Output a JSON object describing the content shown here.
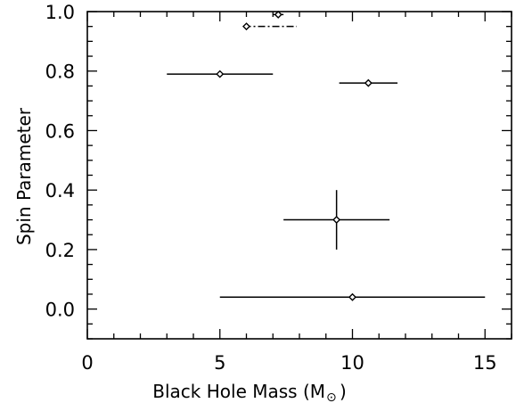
{
  "chart_data": {
    "type": "scatter",
    "title": "",
    "xlabel": "Black Hole Mass (M",
    "xlabel_subscript": "⊙",
    "xlabel_close": ")",
    "ylabel": "Spin Parameter",
    "xlim": [
      0,
      16
    ],
    "ylim": [
      -0.1,
      1.0
    ],
    "x_ticks": [
      0,
      5,
      10,
      15
    ],
    "x_tick_labels": [
      "0",
      "5",
      "10",
      "15"
    ],
    "y_ticks": [
      0.0,
      0.2,
      0.4,
      0.6,
      0.8,
      1.0
    ],
    "y_tick_labels": [
      "0.0",
      "0.2",
      "0.4",
      "0.6",
      "0.8",
      "1.0"
    ],
    "grid": false,
    "legend": "none",
    "points": [
      {
        "x": 7.2,
        "y": 0.99,
        "x_err": [
          7.0,
          7.4
        ],
        "y_err": [
          0.98,
          1.0
        ],
        "x_err_style": "solid"
      },
      {
        "x": 6.0,
        "y": 0.95,
        "x_err": [
          5.9,
          7.9
        ],
        "y_err": null,
        "x_err_style": "dash-dot"
      },
      {
        "x": 5.0,
        "y": 0.79,
        "x_err": [
          3.0,
          7.0
        ],
        "y_err": null,
        "x_err_style": "solid"
      },
      {
        "x": 10.6,
        "y": 0.76,
        "x_err": [
          9.5,
          11.7
        ],
        "y_err": null,
        "x_err_style": "solid"
      },
      {
        "x": 9.4,
        "y": 0.3,
        "x_err": [
          7.4,
          11.4
        ],
        "y_err": [
          0.2,
          0.4
        ],
        "x_err_style": "solid"
      },
      {
        "x": 10.0,
        "y": 0.04,
        "x_err": [
          5.0,
          15.0
        ],
        "y_err": null,
        "x_err_style": "solid"
      }
    ]
  }
}
